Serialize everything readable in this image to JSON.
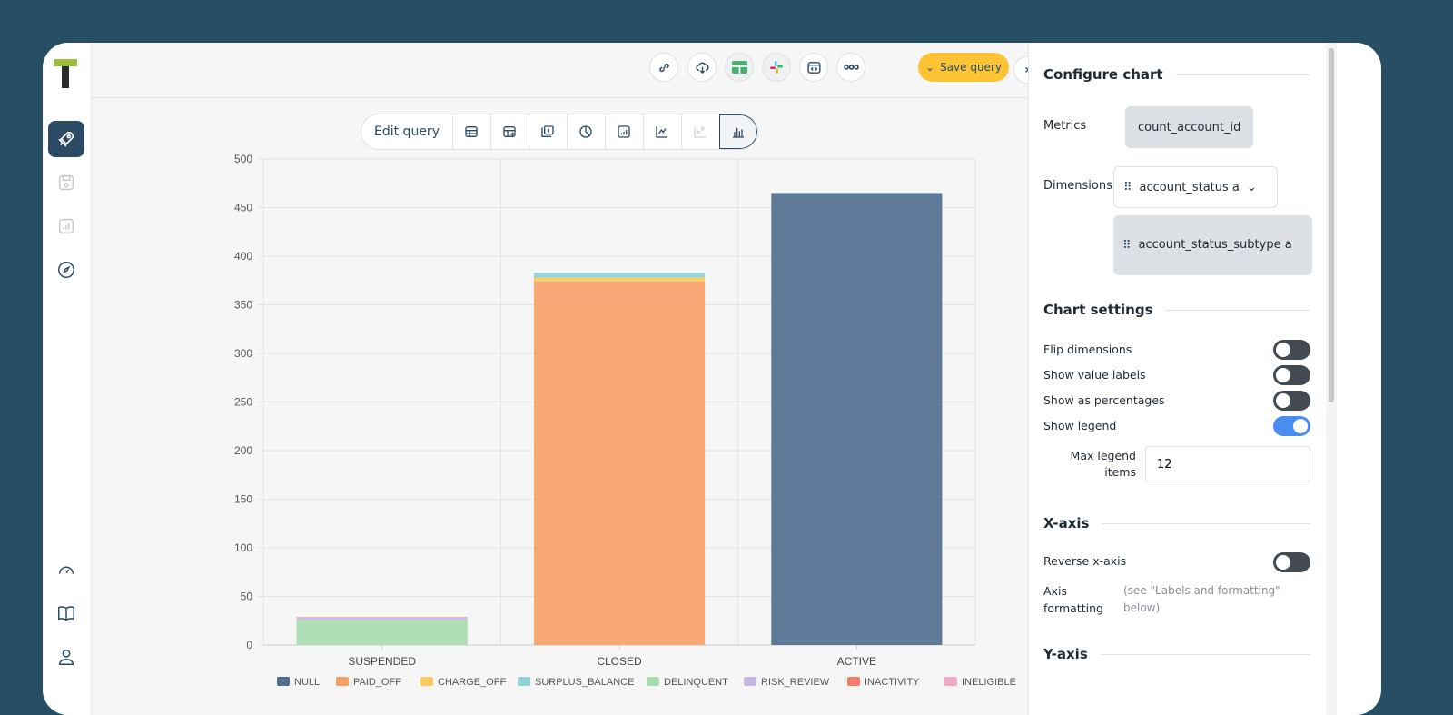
{
  "colors": {
    "background": "#264f66",
    "accent": "#fcc434",
    "nav_active": "#2b4a66"
  },
  "sidebar": {
    "logo": "T",
    "items": [
      {
        "icon": "rocket-icon",
        "active": true
      },
      {
        "icon": "save-icon"
      },
      {
        "icon": "chart-icon"
      },
      {
        "icon": "compass-icon"
      }
    ],
    "bottom": [
      {
        "icon": "gauge-icon"
      },
      {
        "icon": "book-icon"
      },
      {
        "icon": "user-icon"
      }
    ]
  },
  "topbar": {
    "buttons": [
      "link-icon",
      "cloud-download-icon",
      "table-icon",
      "slack-icon",
      "embed-icon",
      "more-icon"
    ],
    "save_label": "Save query",
    "expand": "›"
  },
  "chart_toolbar": {
    "edit_label": "Edit query",
    "views": [
      "table-icon",
      "pivot-icon",
      "number-icon",
      "pie-icon",
      "area-icon",
      "line-icon",
      "scatter-icon",
      "bar-icon"
    ],
    "selected": "bar-icon"
  },
  "chart_data": {
    "type": "bar",
    "stacked": true,
    "title": "",
    "xlabel": "",
    "ylabel": "",
    "categories": [
      "SUSPENDED",
      "CLOSED",
      "ACTIVE"
    ],
    "ylim": [
      0,
      500
    ],
    "yticks": [
      0,
      50,
      100,
      150,
      200,
      250,
      300,
      350,
      400,
      450,
      500
    ],
    "grid": true,
    "legend": "bottom",
    "series": [
      {
        "name": "NULL",
        "color": "#4f6d8f",
        "values": [
          0,
          0,
          465
        ]
      },
      {
        "name": "PAID_OFF",
        "color": "#f7a066",
        "values": [
          0,
          374,
          0
        ]
      },
      {
        "name": "CHARGE_OFF",
        "color": "#fcc95a",
        "values": [
          0,
          4,
          0
        ]
      },
      {
        "name": "SURPLUS_BALANCE",
        "color": "#8fcfd6",
        "values": [
          0,
          5,
          0
        ]
      },
      {
        "name": "DELINQUENT",
        "color": "#a9dbb0",
        "values": [
          26,
          0,
          0
        ]
      },
      {
        "name": "RISK_REVIEW",
        "color": "#c5b6e6",
        "values": [
          2,
          0,
          0
        ]
      },
      {
        "name": "INACTIVITY",
        "color": "#f57c6a",
        "values": [
          0,
          0,
          0
        ]
      },
      {
        "name": "INELIGIBLE",
        "color": "#f2a7c6",
        "values": [
          1,
          0,
          0
        ]
      }
    ]
  },
  "panel": {
    "configure_title": "Configure chart",
    "metrics_label": "Metrics",
    "metric": "count_account_id",
    "dimensions_label": "Dimensions",
    "dimension1": "account_status a",
    "dimension2": "account_status_subtype a",
    "settings_title": "Chart settings",
    "toggles": [
      {
        "label": "Flip dimensions",
        "on": false
      },
      {
        "label": "Show value labels",
        "on": false
      },
      {
        "label": "Show as percentages",
        "on": false
      },
      {
        "label": "Show legend",
        "on": true
      }
    ],
    "max_legend_label": "Max legend items",
    "max_legend_value": "12",
    "xaxis_title": "X-axis",
    "reverse_label": "Reverse x-axis",
    "reverse_on": false,
    "axis_formatting_label": "Axis formatting",
    "axis_formatting_note": "(see \"Labels and formatting\" below)",
    "yaxis_title": "Y-axis"
  }
}
